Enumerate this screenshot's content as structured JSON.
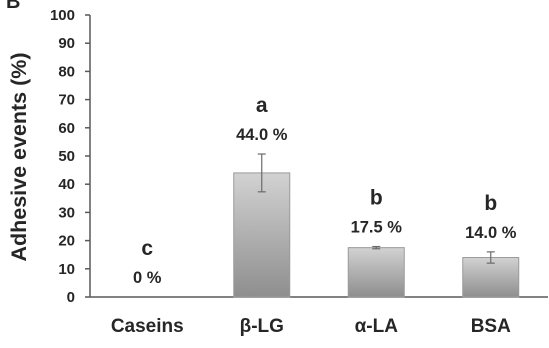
{
  "panel_label": "B",
  "chart_data": {
    "type": "bar",
    "title": "",
    "xlabel": "",
    "ylabel": "Adhesive events (%)",
    "ylim": [
      0,
      100
    ],
    "yticks": [
      "0",
      "10",
      "20",
      "30",
      "40",
      "50",
      "60",
      "70",
      "80",
      "90",
      "100"
    ],
    "categories": [
      "Caseins",
      "β-LG",
      "α-LA",
      "BSA"
    ],
    "values": [
      0,
      44.0,
      17.5,
      14.0
    ],
    "errors": [
      0,
      6.7,
      0.4,
      2.0
    ],
    "value_labels": [
      "0 %",
      "44.0 %",
      "17.5 %",
      "14.0 %"
    ],
    "significance_letters": [
      "c",
      "a",
      "b",
      "b"
    ],
    "grid": false,
    "legend": "none",
    "bar_color_top": "#d2d2d2",
    "bar_color_bottom": "#8e8e8e"
  }
}
